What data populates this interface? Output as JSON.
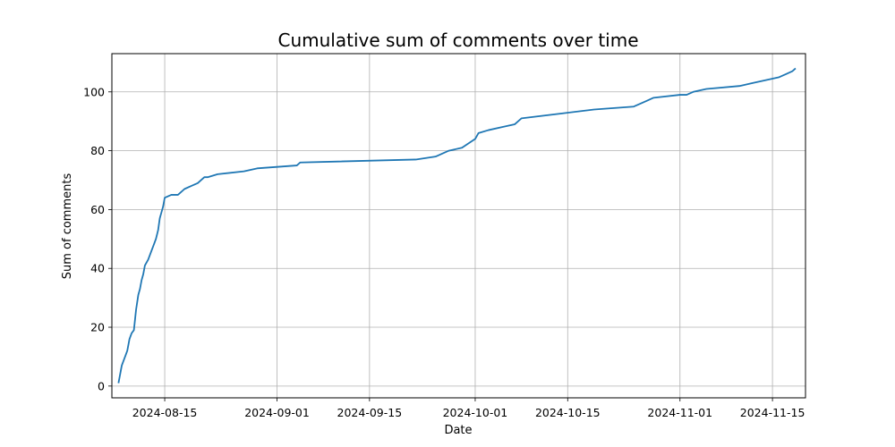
{
  "chart_data": {
    "type": "line",
    "title": "Cumulative sum of comments over time",
    "xlabel": "Date",
    "ylabel": "Sum of comments",
    "x_ticks": [
      "2024-08-15",
      "2024-09-01",
      "2024-09-15",
      "2024-10-01",
      "2024-10-15",
      "2024-11-01",
      "2024-11-15"
    ],
    "y_ticks": [
      0,
      20,
      40,
      60,
      80,
      100
    ],
    "xlim": [
      "2024-08-07",
      "2024-11-20"
    ],
    "ylim": [
      -4,
      113
    ],
    "grid": true,
    "line_color": "#1f77b4",
    "series": [
      {
        "x": [
          "2024-08-08",
          "2024-08-08",
          "2024-08-09",
          "2024-08-09",
          "2024-08-09",
          "2024-08-10",
          "2024-08-10",
          "2024-08-10",
          "2024-08-11",
          "2024-08-11",
          "2024-08-11",
          "2024-08-11",
          "2024-08-12",
          "2024-08-12",
          "2024-08-13",
          "2024-08-13",
          "2024-08-13",
          "2024-08-14",
          "2024-08-14",
          "2024-08-14",
          "2024-08-14",
          "2024-08-15",
          "2024-08-16",
          "2024-08-17",
          "2024-08-18",
          "2024-08-19",
          "2024-08-20",
          "2024-08-21",
          "2024-08-21",
          "2024-08-23",
          "2024-08-27",
          "2024-08-29",
          "2024-09-04",
          "2024-09-04",
          "2024-09-22",
          "2024-09-25",
          "2024-09-27",
          "2024-09-29",
          "2024-10-01",
          "2024-10-01",
          "2024-10-03",
          "2024-10-05",
          "2024-10-07",
          "2024-10-08",
          "2024-10-19",
          "2024-10-25",
          "2024-10-26",
          "2024-10-27",
          "2024-10-28",
          "2024-11-01",
          "2024-11-02",
          "2024-11-03",
          "2024-11-05",
          "2024-11-10",
          "2024-11-12",
          "2024-11-14",
          "2024-11-16",
          "2024-11-17",
          "2024-11-18",
          "2024-11-18"
        ],
        "y": [
          1,
          7,
          10,
          12,
          16,
          18,
          19,
          26,
          31,
          33,
          36,
          38,
          41,
          43,
          46,
          48,
          50,
          53,
          57,
          59,
          61,
          64,
          65,
          65,
          67,
          68,
          69,
          71,
          71,
          72,
          73,
          74,
          75,
          76,
          77,
          78,
          80,
          81,
          84,
          86,
          87,
          88,
          89,
          91,
          94,
          95,
          96,
          97,
          98,
          99,
          99,
          100,
          101,
          102,
          103,
          104,
          105,
          106,
          107,
          108
        ]
      }
    ]
  }
}
